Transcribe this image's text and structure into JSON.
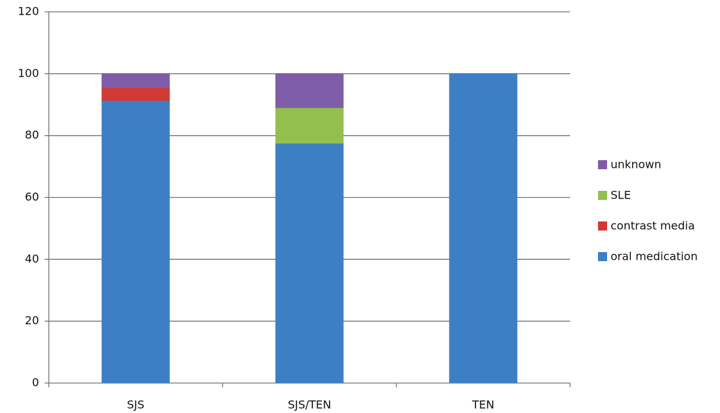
{
  "chart_data": {
    "type": "stacked_bar",
    "categories": [
      "SJS",
      "SJS/TEN",
      "TEN"
    ],
    "series": [
      {
        "name": "oral medication",
        "color": "#3d7fc4",
        "values": [
          91.3,
          77.5,
          100
        ]
      },
      {
        "name": "contrast media",
        "color": "#d03a36",
        "values": [
          4.3,
          0,
          0
        ]
      },
      {
        "name": "SLE",
        "color": "#92bf4e",
        "values": [
          0,
          11.5,
          0
        ]
      },
      {
        "name": "unknown",
        "color": "#7f5ca8",
        "values": [
          4.4,
          11,
          0
        ]
      }
    ],
    "ylim": [
      0,
      120
    ],
    "yticks": [
      0,
      20,
      40,
      60,
      80,
      100,
      120
    ],
    "grid": true,
    "legend": "right"
  }
}
